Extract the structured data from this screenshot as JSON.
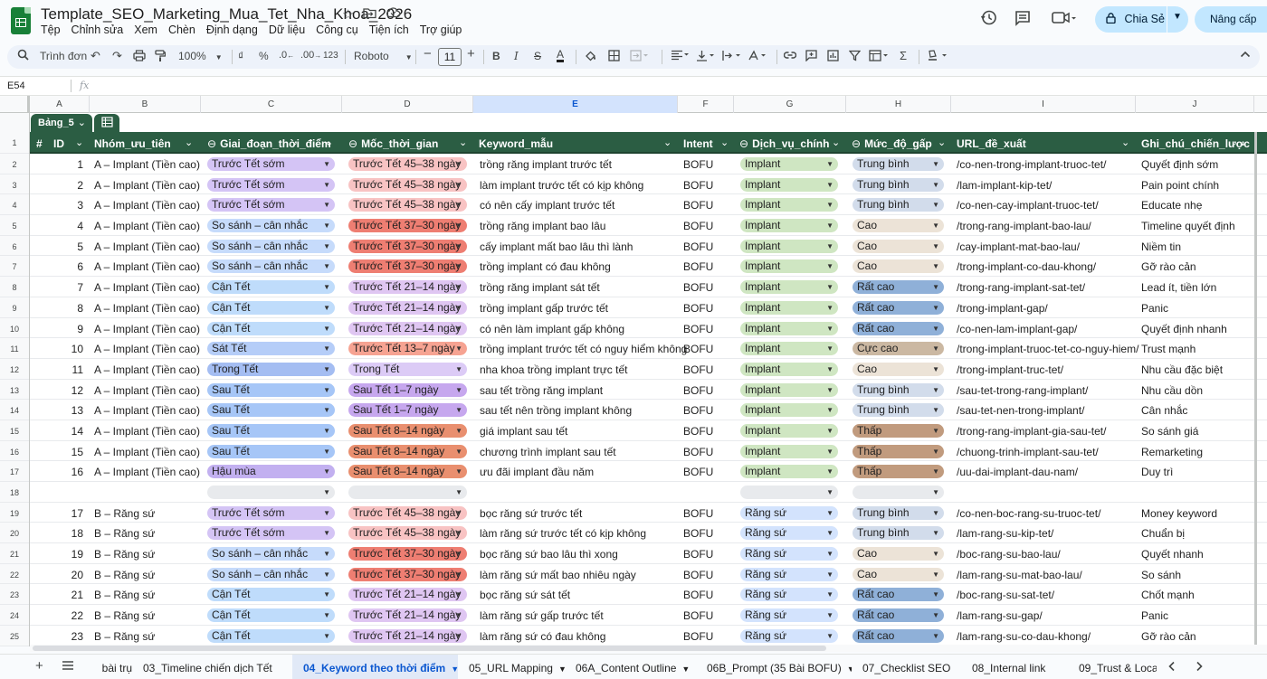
{
  "doc": {
    "title": "Template_SEO_Marketing_Mua_Tet_Nha_Khoa_2026",
    "menu": [
      "Tệp",
      "Chỉnh sửa",
      "Xem",
      "Chèn",
      "Định dạng",
      "Dữ liệu",
      "Công cụ",
      "Tiện ích",
      "Trợ giúp"
    ],
    "share_label": "Chia Sẻ",
    "upgrade_label": "Nâng cấp"
  },
  "toolbar": {
    "search_label": "Trình đơn",
    "zoom": "100%",
    "font": "Roboto",
    "font_size": "11",
    "currency": "₫",
    "percent": "%",
    "decimal_dec": ".0",
    "decimal_inc": ".00",
    "number_format": "123"
  },
  "formula": {
    "cell": "E54",
    "fx": "fx"
  },
  "columns": [
    "A",
    "B",
    "C",
    "D",
    "E",
    "F",
    "G",
    "H",
    "I",
    "J"
  ],
  "selected_column": "E",
  "table_name": "Bảng_5",
  "headers": {
    "hash": "#",
    "id": "ID",
    "group": "Nhóm_ưu_tiên",
    "stage": "Giai_đoạn_thời_điểm",
    "milestone": "Mốc_thời_gian",
    "keyword": "Keyword_mẫu",
    "intent": "Intent",
    "service": "Dịch_vụ_chính",
    "urgency": "Mức_độ_gấp",
    "url": "URL_đề_xuất",
    "note": "Ghi_chú_chiến_lược"
  },
  "row_numbers": [
    "1",
    "2",
    "3",
    "4",
    "5",
    "6",
    "7",
    "8",
    "9",
    "10",
    "11",
    "12",
    "13",
    "14",
    "15",
    "16",
    "17",
    "18",
    "19",
    "20",
    "21",
    "22",
    "23",
    "24",
    "25"
  ],
  "stage_colors": {
    "Trước Tết sớm": "#d4c4f5",
    "So sánh – cân nhắc": "#c6dbfb",
    "Cận Tết": "#bfdcfb",
    "Sát Tết": "#b5cdf8",
    "Trong Tết": "#a4bdf2",
    "Sau Tết": "#a6c6f7",
    "Hậu mùa": "#c2b0f0"
  },
  "milestone_colors": {
    "Trước Tết 45–38 ngày": "#f8c3c3",
    "Trước Tết 37–30 ngày": "#ee7e72",
    "Trước Tết 21–14 ngày": "#dfc6f2",
    "Trước Tết 13–7 ngày": "#f6a392",
    "Trong Tết": "#dccbf6",
    "Sau Tết 1–7 ngày": "#c6a7ee",
    "Sau Tết 8–14 ngày": "#e98f6f"
  },
  "service_colors": {
    "Implant": "#cfe6c2",
    "Răng sứ": "#d3e3fd"
  },
  "urgency_colors": {
    "Trung bình": "#d2dceb",
    "Cao": "#ece3d7",
    "Rất cao": "#8fb0d8",
    "Cực cao": "#cbb8a2",
    "Thấp": "#c19b7e"
  },
  "rows": [
    {
      "id": "1",
      "group": "A – Implant (Tiền cao)",
      "stage": "Trước Tết sớm",
      "milestone": "Trước Tết 45–38 ngày",
      "keyword": "trồng răng implant trước tết",
      "intent": "BOFU",
      "service": "Implant",
      "urgency": "Trung bình",
      "url": "/co-nen-trong-implant-truoc-tet/",
      "note": "Quyết định sớm"
    },
    {
      "id": "2",
      "group": "A – Implant (Tiền cao)",
      "stage": "Trước Tết sớm",
      "milestone": "Trước Tết 45–38 ngày",
      "keyword": "làm implant trước tết có kịp không",
      "intent": "BOFU",
      "service": "Implant",
      "urgency": "Trung bình",
      "url": "/lam-implant-kip-tet/",
      "note": "Pain point chính"
    },
    {
      "id": "3",
      "group": "A – Implant (Tiền cao)",
      "stage": "Trước Tết sớm",
      "milestone": "Trước Tết 45–38 ngày",
      "keyword": "có nên cấy implant trước tết",
      "intent": "BOFU",
      "service": "Implant",
      "urgency": "Trung bình",
      "url": "/co-nen-cay-implant-truoc-tet/",
      "note": "Educate nhẹ"
    },
    {
      "id": "4",
      "group": "A – Implant (Tiền cao)",
      "stage": "So sánh – cân nhắc",
      "milestone": "Trước Tết 37–30 ngày",
      "keyword": "trồng răng implant bao lâu",
      "intent": "BOFU",
      "service": "Implant",
      "urgency": "Cao",
      "url": "/trong-rang-implant-bao-lau/",
      "note": "Timeline quyết định"
    },
    {
      "id": "5",
      "group": "A – Implant (Tiền cao)",
      "stage": "So sánh – cân nhắc",
      "milestone": "Trước Tết 37–30 ngày",
      "keyword": "cấy implant mất bao lâu thì lành",
      "intent": "BOFU",
      "service": "Implant",
      "urgency": "Cao",
      "url": "/cay-implant-mat-bao-lau/",
      "note": "Niềm tin"
    },
    {
      "id": "6",
      "group": "A – Implant (Tiền cao)",
      "stage": "So sánh – cân nhắc",
      "milestone": "Trước Tết 37–30 ngày",
      "keyword": "trồng implant có đau không",
      "intent": "BOFU",
      "service": "Implant",
      "urgency": "Cao",
      "url": "/trong-implant-co-dau-khong/",
      "note": "Gỡ rào cản"
    },
    {
      "id": "7",
      "group": "A – Implant (Tiền cao)",
      "stage": "Cận Tết",
      "milestone": "Trước Tết 21–14 ngày",
      "keyword": "trồng răng implant sát tết",
      "intent": "BOFU",
      "service": "Implant",
      "urgency": "Rất cao",
      "url": "/trong-rang-implant-sat-tet/",
      "note": "Lead ít, tiền lớn"
    },
    {
      "id": "8",
      "group": "A – Implant (Tiền cao)",
      "stage": "Cận Tết",
      "milestone": "Trước Tết 21–14 ngày",
      "keyword": "trồng implant gấp trước tết",
      "intent": "BOFU",
      "service": "Implant",
      "urgency": "Rất cao",
      "url": "/trong-implant-gap/",
      "note": "Panic"
    },
    {
      "id": "9",
      "group": "A – Implant (Tiền cao)",
      "stage": "Cận Tết",
      "milestone": "Trước Tết 21–14 ngày",
      "keyword": "có nên làm implant gấp không",
      "intent": "BOFU",
      "service": "Implant",
      "urgency": "Rất cao",
      "url": "/co-nen-lam-implant-gap/",
      "note": "Quyết định nhanh"
    },
    {
      "id": "10",
      "group": "A – Implant (Tiền cao)",
      "stage": "Sát Tết",
      "milestone": "Trước Tết 13–7 ngày",
      "keyword": "trồng implant trước tết có nguy hiểm không",
      "intent": "BOFU",
      "service": "Implant",
      "urgency": "Cực cao",
      "url": "/trong-implant-truoc-tet-co-nguy-hiem/",
      "note": "Trust mạnh"
    },
    {
      "id": "11",
      "group": "A – Implant (Tiền cao)",
      "stage": "Trong Tết",
      "milestone": "Trong Tết",
      "keyword": "nha khoa trồng implant trực tết",
      "intent": "BOFU",
      "service": "Implant",
      "urgency": "Cao",
      "url": "/trong-implant-truc-tet/",
      "note": "Nhu cầu đặc biệt"
    },
    {
      "id": "12",
      "group": "A – Implant (Tiền cao)",
      "stage": "Sau Tết",
      "milestone": "Sau Tết 1–7 ngày",
      "keyword": "sau tết trồng răng implant",
      "intent": "BOFU",
      "service": "Implant",
      "urgency": "Trung bình",
      "url": "/sau-tet-trong-rang-implant/",
      "note": "Nhu cầu dồn"
    },
    {
      "id": "13",
      "group": "A – Implant (Tiền cao)",
      "stage": "Sau Tết",
      "milestone": "Sau Tết 1–7 ngày",
      "keyword": "sau tết nên trồng implant không",
      "intent": "BOFU",
      "service": "Implant",
      "urgency": "Trung bình",
      "url": "/sau-tet-nen-trong-implant/",
      "note": "Cân nhắc"
    },
    {
      "id": "14",
      "group": "A – Implant (Tiền cao)",
      "stage": "Sau Tết",
      "milestone": "Sau Tết 8–14 ngày",
      "keyword": "giá implant sau tết",
      "intent": "BOFU",
      "service": "Implant",
      "urgency": "Thấp",
      "url": "/trong-rang-implant-gia-sau-tet/",
      "note": "So sánh giá"
    },
    {
      "id": "15",
      "group": "A – Implant (Tiền cao)",
      "stage": "Sau Tết",
      "milestone": "Sau Tết 8–14 ngày",
      "keyword": "chương trình implant sau tết",
      "intent": "BOFU",
      "service": "Implant",
      "urgency": "Thấp",
      "url": "/chuong-trinh-implant-sau-tet/",
      "note": "Remarketing"
    },
    {
      "id": "16",
      "group": "A – Implant (Tiền cao)",
      "stage": "Hậu mùa",
      "milestone": "Sau Tết 8–14 ngày",
      "keyword": "ưu đãi implant đầu năm",
      "intent": "BOFU",
      "service": "Implant",
      "urgency": "Thấp",
      "url": "/uu-dai-implant-dau-nam/",
      "note": "Duy trì"
    },
    {
      "id": "",
      "group": "",
      "stage": "",
      "milestone": "",
      "keyword": "",
      "intent": "",
      "service": "",
      "urgency": "",
      "url": "",
      "note": "",
      "blank": true
    },
    {
      "id": "17",
      "group": "B – Răng sứ",
      "stage": "Trước Tết sớm",
      "milestone": "Trước Tết 45–38 ngày",
      "keyword": "bọc răng sứ trước tết",
      "intent": "BOFU",
      "service": "Răng sứ",
      "urgency": "Trung bình",
      "url": "/co-nen-boc-rang-su-truoc-tet/",
      "note": "Money keyword"
    },
    {
      "id": "18",
      "group": "B – Răng sứ",
      "stage": "Trước Tết sớm",
      "milestone": "Trước Tết 45–38 ngày",
      "keyword": "làm răng sứ trước tết có kịp không",
      "intent": "BOFU",
      "service": "Răng sứ",
      "urgency": "Trung bình",
      "url": "/lam-rang-su-kip-tet/",
      "note": "Chuẩn bị"
    },
    {
      "id": "19",
      "group": "B – Răng sứ",
      "stage": "So sánh – cân nhắc",
      "milestone": "Trước Tết 37–30 ngày",
      "keyword": "bọc răng sứ bao lâu thì xong",
      "intent": "BOFU",
      "service": "Răng sứ",
      "urgency": "Cao",
      "url": "/boc-rang-su-bao-lau/",
      "note": "Quyết nhanh"
    },
    {
      "id": "20",
      "group": "B – Răng sứ",
      "stage": "So sánh – cân nhắc",
      "milestone": "Trước Tết 37–30 ngày",
      "keyword": "làm răng sứ mất bao nhiêu ngày",
      "intent": "BOFU",
      "service": "Răng sứ",
      "urgency": "Cao",
      "url": "/lam-rang-su-mat-bao-lau/",
      "note": "So sánh"
    },
    {
      "id": "21",
      "group": "B – Răng sứ",
      "stage": "Cận Tết",
      "milestone": "Trước Tết 21–14 ngày",
      "keyword": "bọc răng sứ sát tết",
      "intent": "BOFU",
      "service": "Răng sứ",
      "urgency": "Rất cao",
      "url": "/boc-rang-su-sat-tet/",
      "note": "Chốt mạnh"
    },
    {
      "id": "22",
      "group": "B – Răng sứ",
      "stage": "Cận Tết",
      "milestone": "Trước Tết 21–14 ngày",
      "keyword": "làm răng sứ gấp trước tết",
      "intent": "BOFU",
      "service": "Răng sứ",
      "urgency": "Rất cao",
      "url": "/lam-rang-su-gap/",
      "note": "Panic"
    },
    {
      "id": "23",
      "group": "B – Răng sứ",
      "stage": "Cận Tết",
      "milestone": "Trước Tết 21–14 ngày",
      "keyword": "làm răng sứ có đau không",
      "intent": "BOFU",
      "service": "Răng sứ",
      "urgency": "Rất cao",
      "url": "/lam-rang-su-co-dau-khong/",
      "note": "Gỡ rào cản"
    }
  ],
  "tabs": [
    {
      "label": "bài trụ",
      "active": false
    },
    {
      "label": "03_Timeline chiến dịch Tết",
      "active": false
    },
    {
      "label": "04_Keyword theo thời điểm",
      "active": true
    },
    {
      "label": "05_URL Mapping",
      "active": false
    },
    {
      "label": "06A_Content Outline",
      "active": false
    },
    {
      "label": "06B_Prompt (35 Bài BOFU)",
      "active": false
    },
    {
      "label": "07_Checklist SEO",
      "active": false
    },
    {
      "label": "08_Internal link",
      "active": false
    },
    {
      "label": "09_Trust & Loca",
      "active": false
    }
  ]
}
